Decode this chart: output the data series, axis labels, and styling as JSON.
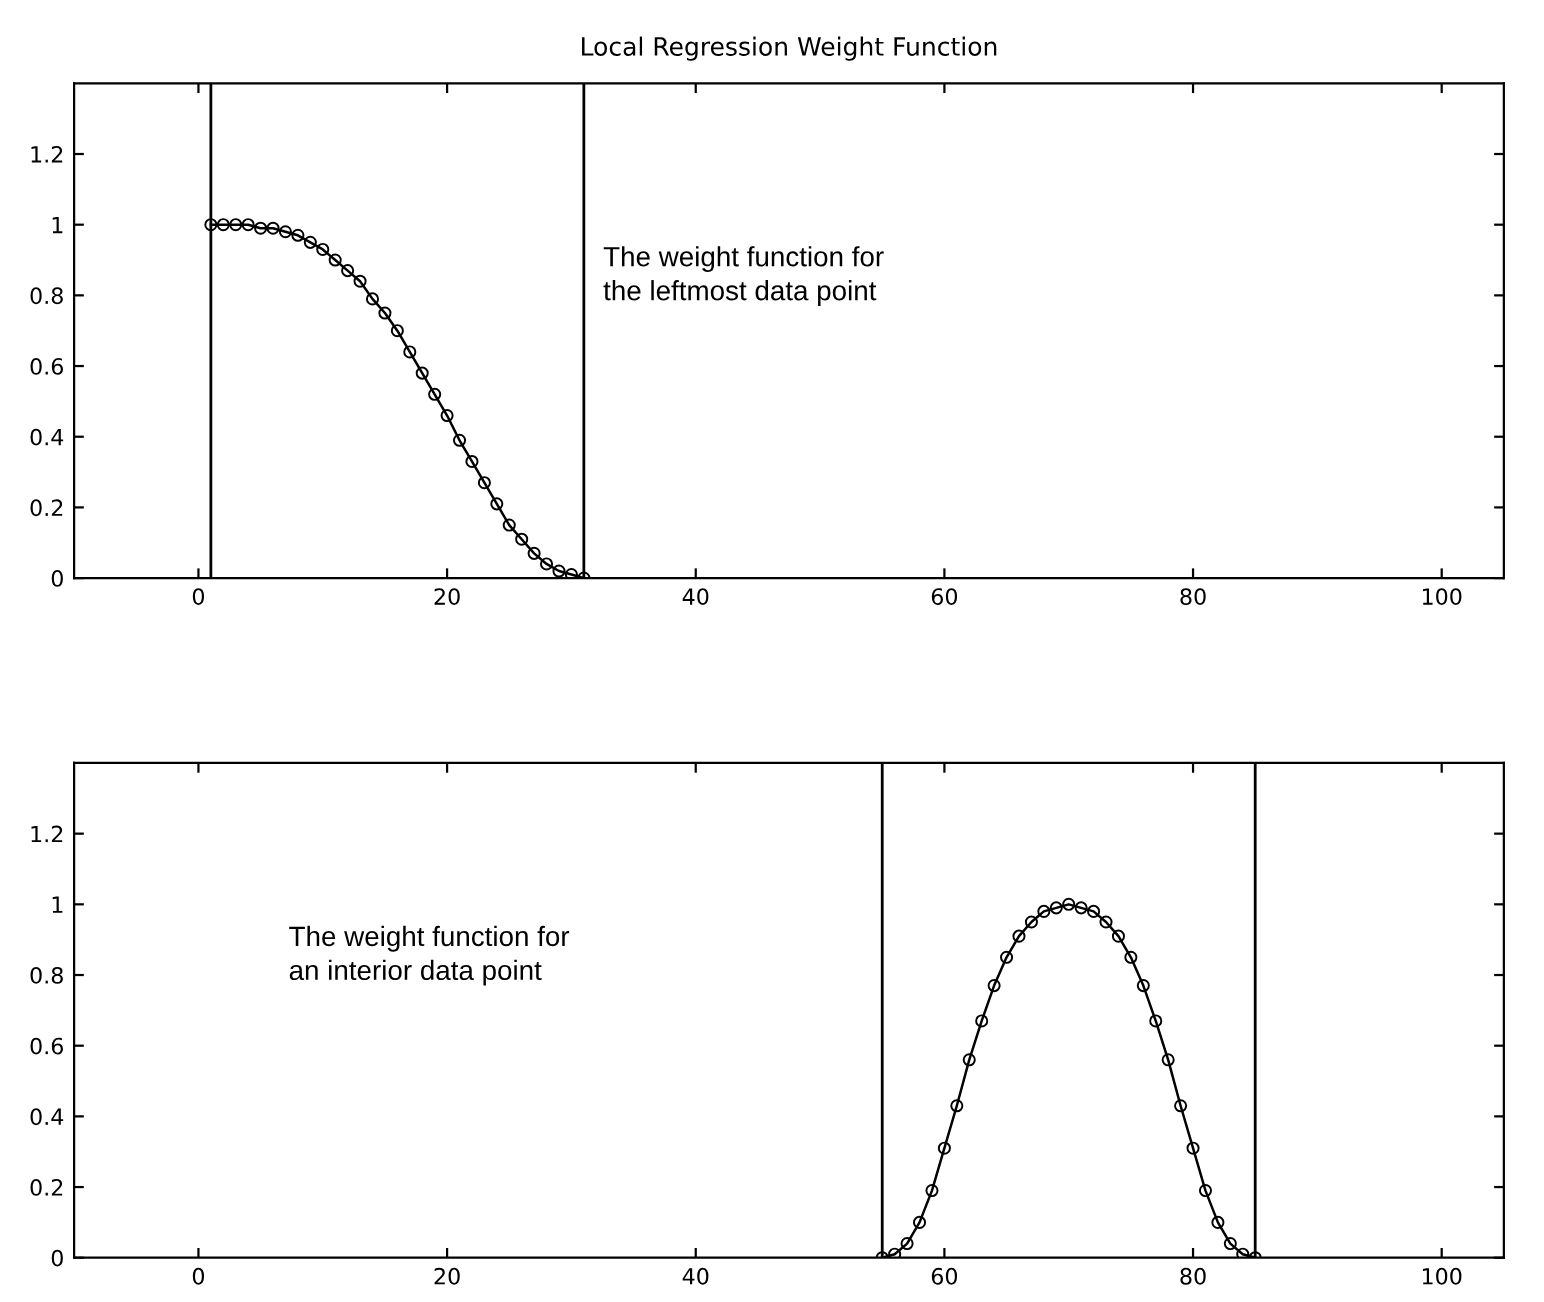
{
  "chart_data": [
    {
      "type": "line",
      "title": "Local Regression Weight Function",
      "x": [
        1,
        2,
        3,
        4,
        5,
        6,
        7,
        8,
        9,
        10,
        11,
        12,
        13,
        14,
        15,
        16,
        17,
        18,
        19,
        20,
        21,
        22,
        23,
        24,
        25,
        26,
        27,
        28,
        29,
        30,
        31
      ],
      "series": [
        {
          "color": "#000000",
          "values": [
            1.0,
            1.0,
            1.0,
            1.0,
            0.99,
            0.99,
            0.98,
            0.97,
            0.95,
            0.93,
            0.9,
            0.87,
            0.84,
            0.79,
            0.75,
            0.7,
            0.64,
            0.58,
            0.52,
            0.46,
            0.39,
            0.33,
            0.27,
            0.21,
            0.15,
            0.11,
            0.07,
            0.04,
            0.02,
            0.01,
            0.0
          ]
        }
      ],
      "xlim": [
        -10,
        105
      ],
      "ylim": [
        0,
        1.4
      ],
      "xticks": [
        0,
        20,
        40,
        60,
        80,
        100
      ],
      "yticks": [
        0,
        0.2,
        0.4,
        0.6,
        0.8,
        1,
        1.2
      ],
      "ref_lines": [
        {
          "axis": "x",
          "value": 1,
          "color": "#000000"
        },
        {
          "axis": "x",
          "value": 31,
          "color": "#000000"
        }
      ],
      "annotations": [
        "The weight function for\nthe leftmost data point"
      ],
      "marker": "circle",
      "line_style": "solid",
      "grid": false,
      "legend": false
    },
    {
      "type": "line",
      "x": [
        55,
        56,
        57,
        58,
        59,
        60,
        61,
        62,
        63,
        64,
        65,
        66,
        67,
        68,
        69,
        70,
        71,
        72,
        73,
        74,
        75,
        76,
        77,
        78,
        79,
        80,
        81,
        82,
        83,
        84,
        85
      ],
      "series": [
        {
          "color": "#000000",
          "values": [
            0.0,
            0.01,
            0.04,
            0.1,
            0.19,
            0.31,
            0.43,
            0.56,
            0.67,
            0.77,
            0.85,
            0.91,
            0.95,
            0.98,
            0.99,
            1.0,
            0.99,
            0.98,
            0.95,
            0.91,
            0.85,
            0.77,
            0.67,
            0.56,
            0.43,
            0.31,
            0.19,
            0.1,
            0.04,
            0.01,
            0.0
          ]
        }
      ],
      "xlim": [
        -10,
        105
      ],
      "ylim": [
        0,
        1.4
      ],
      "xticks": [
        0,
        20,
        40,
        60,
        80,
        100
      ],
      "yticks": [
        0,
        0.2,
        0.4,
        0.6,
        0.8,
        1,
        1.2
      ],
      "ref_lines": [
        {
          "axis": "x",
          "value": 55,
          "color": "#000000"
        },
        {
          "axis": "x",
          "value": 85,
          "color": "#000000"
        }
      ],
      "annotations": [
        "The weight function for\nan interior data point"
      ],
      "marker": "circle",
      "line_style": "solid",
      "grid": false,
      "legend": false
    }
  ]
}
